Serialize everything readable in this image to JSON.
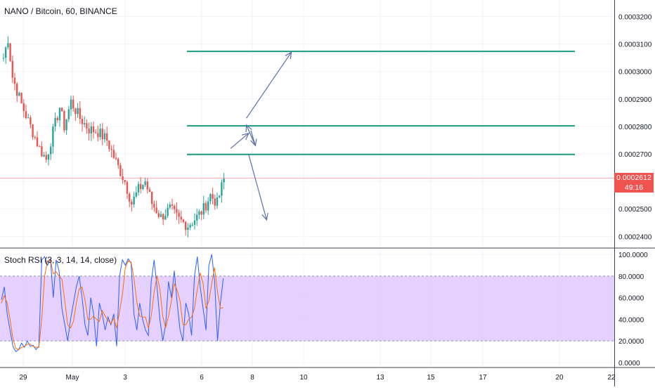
{
  "header": {
    "symbol_title": "NANO / Bitcoin, 60, BINANCE",
    "indicator_title": "Stoch RSI (3, 3, 14, 14, close)"
  },
  "last_price": {
    "value": "0.0002612",
    "countdown": "49:16",
    "color": "#ef5350"
  },
  "colors": {
    "up": "#26a69a",
    "down": "#ef5350",
    "level_line": "#1b9a7e",
    "arrow": "#5b6fa8",
    "stoch_k": "#2962ff",
    "stoch_d": "#ff6d00",
    "band_fill": "#e1c8ff",
    "grid": "#f0f3fa"
  },
  "chart_data": [
    {
      "type": "candlestick",
      "title": "NANO / Bitcoin, 60, BINANCE",
      "ylim": [
        0.000236,
        0.000326
      ],
      "y_ticks": [
        "0.0002400",
        "0.0002500",
        "0.0002600",
        "0.0002700",
        "0.0002800",
        "0.0002900",
        "0.0003000",
        "0.0003100",
        "0.0003200"
      ],
      "x_ticks": [
        "29",
        "May",
        "3",
        "6",
        "8",
        "10",
        "13",
        "15",
        "17",
        "20",
        "22"
      ],
      "grid": true,
      "close_path": [
        [
          0,
          0.000305
        ],
        [
          2,
          0.000312
        ],
        [
          4,
          0.000298
        ],
        [
          8,
          0.000288
        ],
        [
          12,
          0.00028
        ],
        [
          16,
          0.000272
        ],
        [
          19,
          0.000268
        ],
        [
          22,
          0.000278
        ],
        [
          25,
          0.000287
        ],
        [
          27,
          0.00028
        ],
        [
          30,
          0.000289
        ],
        [
          34,
          0.000283
        ],
        [
          38,
          0.000279
        ],
        [
          42,
          0.000278
        ],
        [
          46,
          0.000275
        ],
        [
          50,
          0.000267
        ],
        [
          54,
          0.00026
        ],
        [
          57,
          0.000252
        ],
        [
          60,
          0.000257
        ],
        [
          63,
          0.00026
        ],
        [
          66,
          0.000252
        ],
        [
          70,
          0.000247
        ],
        [
          74,
          0.00025
        ],
        [
          78,
          0.000246
        ],
        [
          82,
          0.000244
        ],
        [
          86,
          0.000247
        ],
        [
          89,
          0.00025
        ],
        [
          92,
          0.000255
        ],
        [
          95,
          0.000252
        ],
        [
          98,
          0.000261
        ]
      ],
      "levels": [
        0.0003073,
        0.0002802,
        0.0002698
      ],
      "arrows": [
        {
          "from": [
            101,
            0.000272
          ],
          "to": [
            109,
            0.0002775
          ]
        },
        {
          "from": [
            110,
            0.0002785
          ],
          "to": [
            112,
            0.000273
          ]
        },
        {
          "from": [
            112,
            0.000273
          ],
          "to": [
            108,
            0.0002805
          ]
        },
        {
          "from": [
            108,
            0.000283
          ],
          "to": [
            128,
            0.000307
          ]
        },
        {
          "from": [
            109,
            0.0002698
          ],
          "to": [
            117,
            0.000246
          ]
        }
      ]
    },
    {
      "type": "line",
      "title": "Stoch RSI (3, 3, 14, 14, close)",
      "ylim": [
        -4,
        104
      ],
      "y_ticks": [
        "0.0000",
        "20.0000",
        "40.0000",
        "60.0000",
        "80.0000",
        "100.0000"
      ],
      "band": [
        20,
        80
      ],
      "series": [
        {
          "values": [
            58,
            70,
            45,
            30,
            15,
            10,
            12,
            18,
            14,
            20,
            15,
            16,
            12,
            15,
            95,
            98,
            90,
            96,
            60,
            95,
            85,
            50,
            35,
            20,
            40,
            55,
            70,
            80,
            60,
            35,
            25,
            60,
            45,
            15,
            55,
            45,
            30,
            42,
            35,
            45,
            15,
            80,
            95,
            90,
            96,
            92,
            45,
            30,
            55,
            40,
            30,
            25,
            75,
            95,
            70,
            40,
            20,
            35,
            75,
            60,
            85,
            55,
            30,
            20,
            55,
            45,
            25,
            80,
            98,
            70,
            50,
            30,
            90,
            100,
            75,
            20,
            55,
            78
          ]
        },
        {
          "values": [
            55,
            62,
            55,
            40,
            22,
            13,
            12,
            14,
            15,
            17,
            17,
            15,
            14,
            14,
            40,
            80,
            94,
            95,
            82,
            84,
            80,
            77,
            57,
            35,
            32,
            38,
            55,
            68,
            70,
            58,
            40,
            40,
            43,
            40,
            38,
            48,
            43,
            39,
            36,
            41,
            32,
            47,
            63,
            88,
            94,
            93,
            78,
            56,
            43,
            42,
            42,
            32,
            43,
            65,
            80,
            68,
            43,
            32,
            43,
            57,
            73,
            67,
            57,
            35,
            35,
            40,
            42,
            50,
            68,
            83,
            73,
            50,
            57,
            73,
            88,
            65,
            50,
            51
          ]
        }
      ]
    }
  ]
}
